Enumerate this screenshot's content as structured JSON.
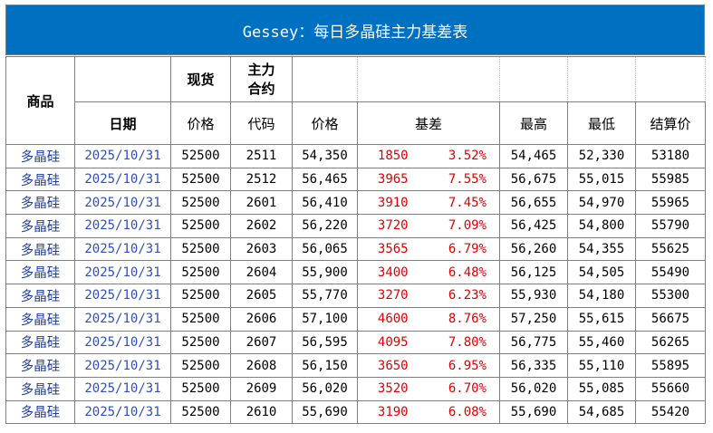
{
  "title": "Gessey：每日多晶硅主力基差表",
  "headers": {
    "product": "商品",
    "spot": "现货",
    "main_contract": "主力\n合约",
    "date": "日期",
    "spot_price": "价格",
    "code": "代码",
    "futures_price": "价格",
    "basis": "基差",
    "high": "最高",
    "low": "最低",
    "settle": "结算价"
  },
  "rows": [
    {
      "name": "多晶硅",
      "date": "2025/10/31",
      "spot": "52500",
      "code": "2511",
      "price": "54,350",
      "basis": "1850",
      "pct": "3.52%",
      "high": "54,465",
      "low": "52,330",
      "settle": "53180"
    },
    {
      "name": "多晶硅",
      "date": "2025/10/31",
      "spot": "52500",
      "code": "2512",
      "price": "56,465",
      "basis": "3965",
      "pct": "7.55%",
      "high": "56,675",
      "low": "55,015",
      "settle": "55985"
    },
    {
      "name": "多晶硅",
      "date": "2025/10/31",
      "spot": "52500",
      "code": "2601",
      "price": "56,410",
      "basis": "3910",
      "pct": "7.45%",
      "high": "56,655",
      "low": "54,970",
      "settle": "55965"
    },
    {
      "name": "多晶硅",
      "date": "2025/10/31",
      "spot": "52500",
      "code": "2602",
      "price": "56,220",
      "basis": "3720",
      "pct": "7.09%",
      "high": "56,425",
      "low": "54,800",
      "settle": "55790"
    },
    {
      "name": "多晶硅",
      "date": "2025/10/31",
      "spot": "52500",
      "code": "2603",
      "price": "56,065",
      "basis": "3565",
      "pct": "6.79%",
      "high": "56,260",
      "low": "54,355",
      "settle": "55625"
    },
    {
      "name": "多晶硅",
      "date": "2025/10/31",
      "spot": "52500",
      "code": "2604",
      "price": "55,900",
      "basis": "3400",
      "pct": "6.48%",
      "high": "56,125",
      "low": "54,505",
      "settle": "55490"
    },
    {
      "name": "多晶硅",
      "date": "2025/10/31",
      "spot": "52500",
      "code": "2605",
      "price": "55,770",
      "basis": "3270",
      "pct": "6.23%",
      "high": "55,930",
      "low": "54,180",
      "settle": "55300"
    },
    {
      "name": "多晶硅",
      "date": "2025/10/31",
      "spot": "52500",
      "code": "2606",
      "price": "57,100",
      "basis": "4600",
      "pct": "8.76%",
      "high": "57,250",
      "low": "55,615",
      "settle": "56675"
    },
    {
      "name": "多晶硅",
      "date": "2025/10/31",
      "spot": "52500",
      "code": "2607",
      "price": "56,595",
      "basis": "4095",
      "pct": "7.80%",
      "high": "56,775",
      "low": "55,460",
      "settle": "56265"
    },
    {
      "name": "多晶硅",
      "date": "2025/10/31",
      "spot": "52500",
      "code": "2608",
      "price": "56,150",
      "basis": "3650",
      "pct": "6.95%",
      "high": "56,335",
      "low": "55,110",
      "settle": "55895"
    },
    {
      "name": "多晶硅",
      "date": "2025/10/31",
      "spot": "52500",
      "code": "2609",
      "price": "56,020",
      "basis": "3520",
      "pct": "6.70%",
      "high": "56,020",
      "low": "55,085",
      "settle": "55660"
    },
    {
      "name": "多晶硅",
      "date": "2025/10/31",
      "spot": "52500",
      "code": "2610",
      "price": "55,690",
      "basis": "3190",
      "pct": "6.08%",
      "high": "55,690",
      "low": "54,685",
      "settle": "55420"
    }
  ],
  "colors": {
    "title_bg": "#0070c0",
    "basis_red": "#e00000",
    "link_blue": "#2f4fbf"
  }
}
